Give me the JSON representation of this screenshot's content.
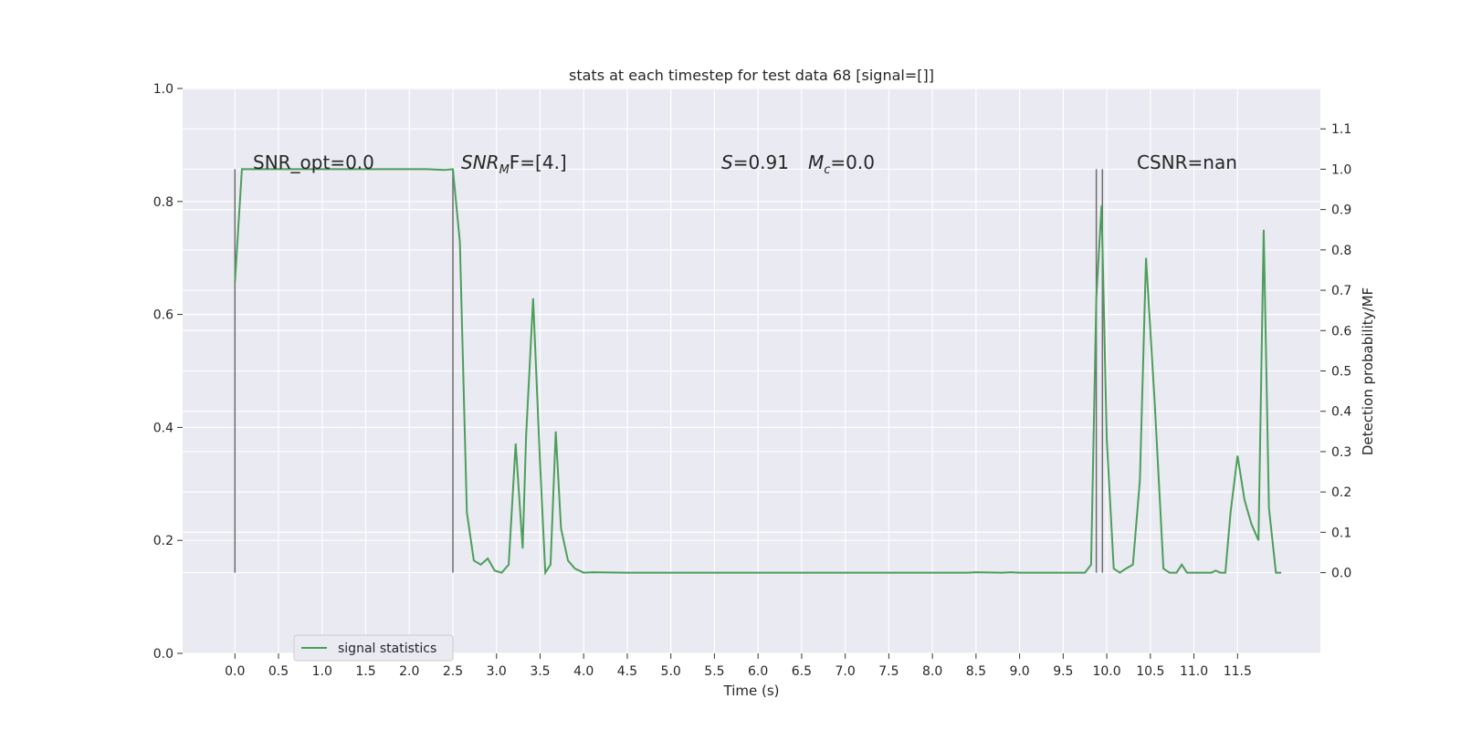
{
  "chart_data": {
    "type": "line",
    "title": "stats at each timestep for test data 68 [signal=[]]",
    "xlabel": "Time (s)",
    "ylabel_left": "",
    "ylabel_right": "Detection probability/MF",
    "xlim": [
      -0.6,
      12.45
    ],
    "ylim_left": [
      0,
      1
    ],
    "ylim_right": [
      -0.2,
      1.2
    ],
    "x_ticks": [
      "0.0",
      "0.5",
      "1.0",
      "1.5",
      "2.0",
      "2.5",
      "3.0",
      "3.5",
      "4.0",
      "4.5",
      "5.0",
      "5.5",
      "6.0",
      "6.5",
      "7.0",
      "7.5",
      "8.0",
      "8.5",
      "9.0",
      "9.5",
      "10.0",
      "10.5",
      "11.0",
      "11.5"
    ],
    "y_left_ticks": [
      "0.0",
      "0.2",
      "0.4",
      "0.6",
      "0.8",
      "1.0"
    ],
    "y_right_ticks": [
      "0.0",
      "0.1",
      "0.2",
      "0.3",
      "0.4",
      "0.5",
      "0.6",
      "0.7",
      "0.8",
      "0.9",
      "1.0",
      "1.1"
    ],
    "grid": true,
    "legend_position": "lower-left",
    "colors": {
      "series": "#4c9e5a",
      "vlines": "#6e6e6e",
      "background": "#eaeaf2",
      "grid": "#ffffff"
    },
    "series": [
      {
        "name": "signal statistics",
        "axis": "right",
        "x": [
          0.0,
          0.08,
          0.2,
          0.4,
          0.6,
          0.8,
          1.0,
          1.2,
          1.4,
          1.6,
          1.8,
          2.0,
          2.2,
          2.4,
          2.5,
          2.58,
          2.66,
          2.74,
          2.82,
          2.9,
          2.98,
          3.06,
          3.14,
          3.22,
          3.3,
          3.34,
          3.42,
          3.5,
          3.56,
          3.62,
          3.68,
          3.74,
          3.82,
          3.9,
          4.0,
          4.1,
          4.5,
          5.0,
          5.5,
          6.0,
          6.5,
          7.0,
          7.5,
          8.0,
          8.4,
          8.5,
          8.8,
          8.9,
          9.0,
          9.5,
          9.75,
          9.82,
          9.88,
          9.94,
          10.0,
          10.08,
          10.15,
          10.22,
          10.3,
          10.38,
          10.45,
          10.55,
          10.65,
          10.72,
          10.8,
          10.86,
          10.92,
          11.0,
          11.1,
          11.2,
          11.25,
          11.3,
          11.36,
          11.42,
          11.5,
          11.58,
          11.66,
          11.74,
          11.8,
          11.86,
          11.94,
          12.0
        ],
        "values": [
          0.72,
          1.0,
          1.0,
          1.0,
          1.0,
          1.0,
          1.0,
          1.0,
          1.0,
          1.0,
          1.0,
          1.0,
          1.0,
          0.998,
          1.0,
          0.82,
          0.15,
          0.03,
          0.02,
          0.035,
          0.005,
          0.0,
          0.02,
          0.32,
          0.06,
          0.34,
          0.68,
          0.27,
          0.0,
          0.02,
          0.35,
          0.11,
          0.03,
          0.01,
          0.0,
          0.001,
          0.0,
          0.0,
          0.0,
          0.0,
          0.0,
          0.0,
          0.0,
          0.0,
          0.0,
          0.001,
          0.0,
          0.001,
          0.0,
          0.0,
          0.0,
          0.02,
          0.68,
          0.91,
          0.33,
          0.01,
          0.0,
          0.01,
          0.02,
          0.23,
          0.78,
          0.42,
          0.01,
          0.0,
          0.0,
          0.02,
          0.0,
          0.0,
          0.0,
          0.0,
          0.005,
          0.0,
          0.0,
          0.15,
          0.29,
          0.18,
          0.12,
          0.08,
          0.85,
          0.16,
          0.0,
          0.0
        ]
      }
    ],
    "vertical_lines": [
      {
        "x": 0.0,
        "y_range": [
          0.0,
          1.0
        ]
      },
      {
        "x": 2.5,
        "y_range": [
          0.0,
          1.0
        ]
      },
      {
        "x": 9.88,
        "y_range": [
          0.0,
          1.0
        ]
      },
      {
        "x": 9.95,
        "y_range": [
          0.0,
          1.0
        ]
      }
    ],
    "annotations": {
      "snr_opt": "SNR_opt=0.0",
      "snr_mf_main": "SNR",
      "snr_mf_sub": "M",
      "snr_mf_rest": "F=[4.]",
      "s_var": "S",
      "s_val": "=0.91",
      "mc_var": "M",
      "mc_sub": "c",
      "mc_val": "=0.0",
      "csnr": "CSNR=nan"
    }
  }
}
